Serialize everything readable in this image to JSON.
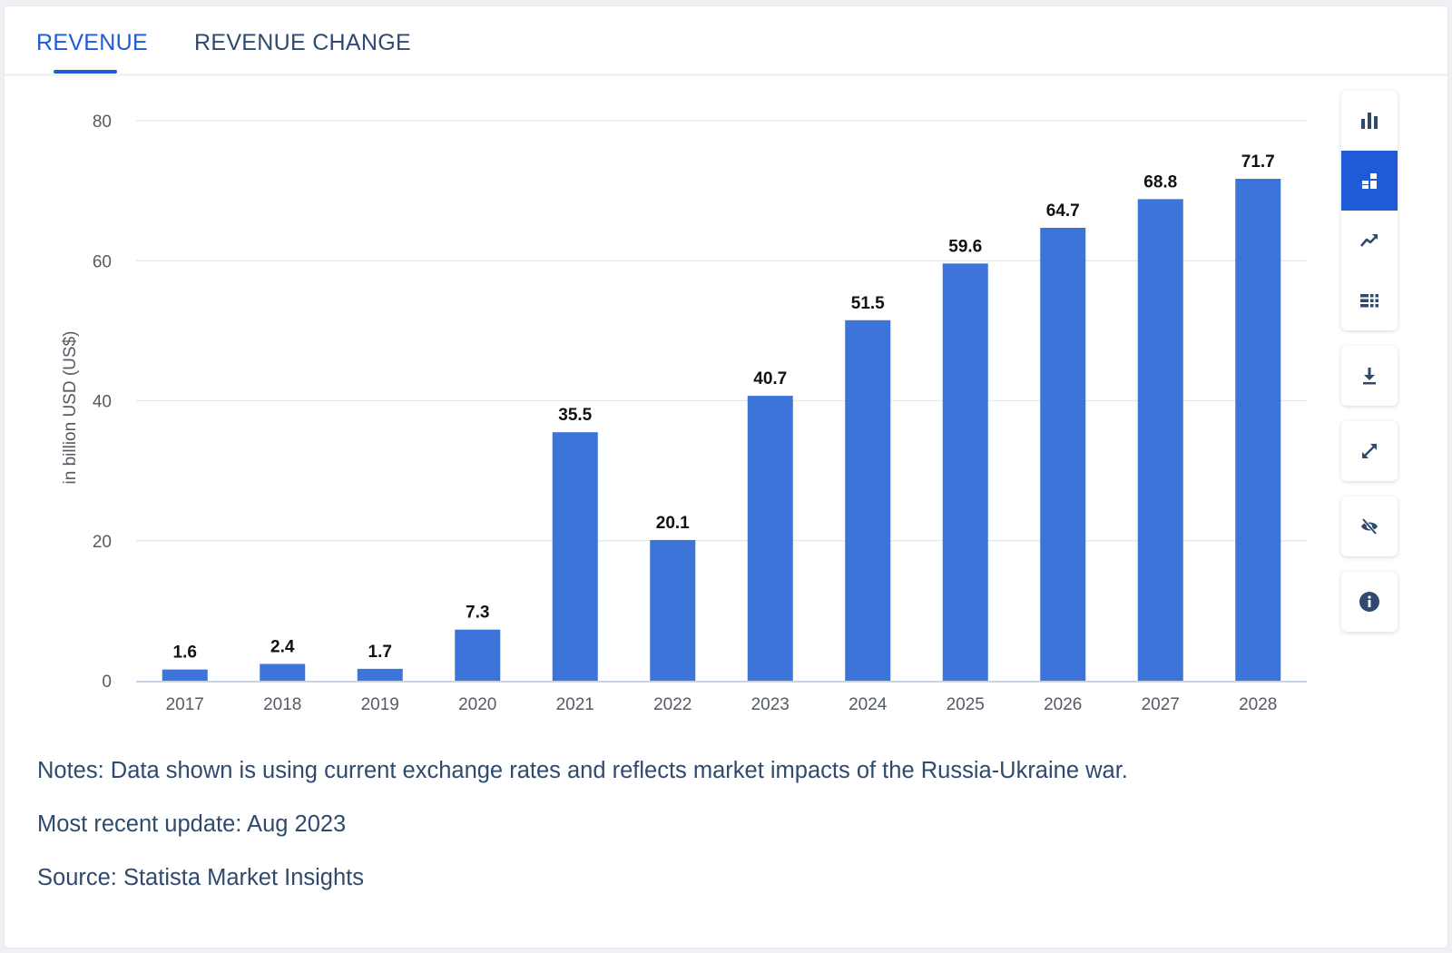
{
  "tabs": [
    {
      "label": "REVENUE",
      "active": true
    },
    {
      "label": "REVENUE CHANGE",
      "active": false
    }
  ],
  "chart_data": {
    "type": "bar",
    "title": "",
    "xlabel": "",
    "ylabel": "in billion USD (US$)",
    "categories": [
      "2017",
      "2018",
      "2019",
      "2020",
      "2021",
      "2022",
      "2023",
      "2024",
      "2025",
      "2026",
      "2027",
      "2028"
    ],
    "values": [
      1.6,
      2.4,
      1.7,
      7.3,
      35.5,
      20.1,
      40.7,
      51.5,
      59.6,
      64.7,
      68.8,
      71.7
    ],
    "value_labels": [
      "1.6",
      "2.4",
      "1.7",
      "7.3",
      "35.5",
      "20.1",
      "40.7",
      "51.5",
      "59.6",
      "64.7",
      "68.8",
      "71.7"
    ],
    "yticks": [
      0,
      20,
      40,
      60,
      80
    ],
    "ylim": [
      0,
      80
    ],
    "grid": true,
    "bar_color": "#3d74d9"
  },
  "sidebar": {
    "chart_types": [
      "bar-chart-icon",
      "stacked-bar-icon",
      "line-chart-icon",
      "table-icon"
    ],
    "active_type": "stacked-bar-icon",
    "tools": [
      "download-icon",
      "fullscreen-icon",
      "hide-icon",
      "info-icon"
    ]
  },
  "notes": {
    "notes": "Notes: Data shown is using current exchange rates and reflects market impacts of the Russia-Ukraine war.",
    "update": "Most recent update: Aug 2023",
    "source": "Source: Statista Market Insights"
  },
  "colors": {
    "accent": "#1f5bd6",
    "bar": "#3d74d9",
    "text": "#2f4a6e"
  }
}
